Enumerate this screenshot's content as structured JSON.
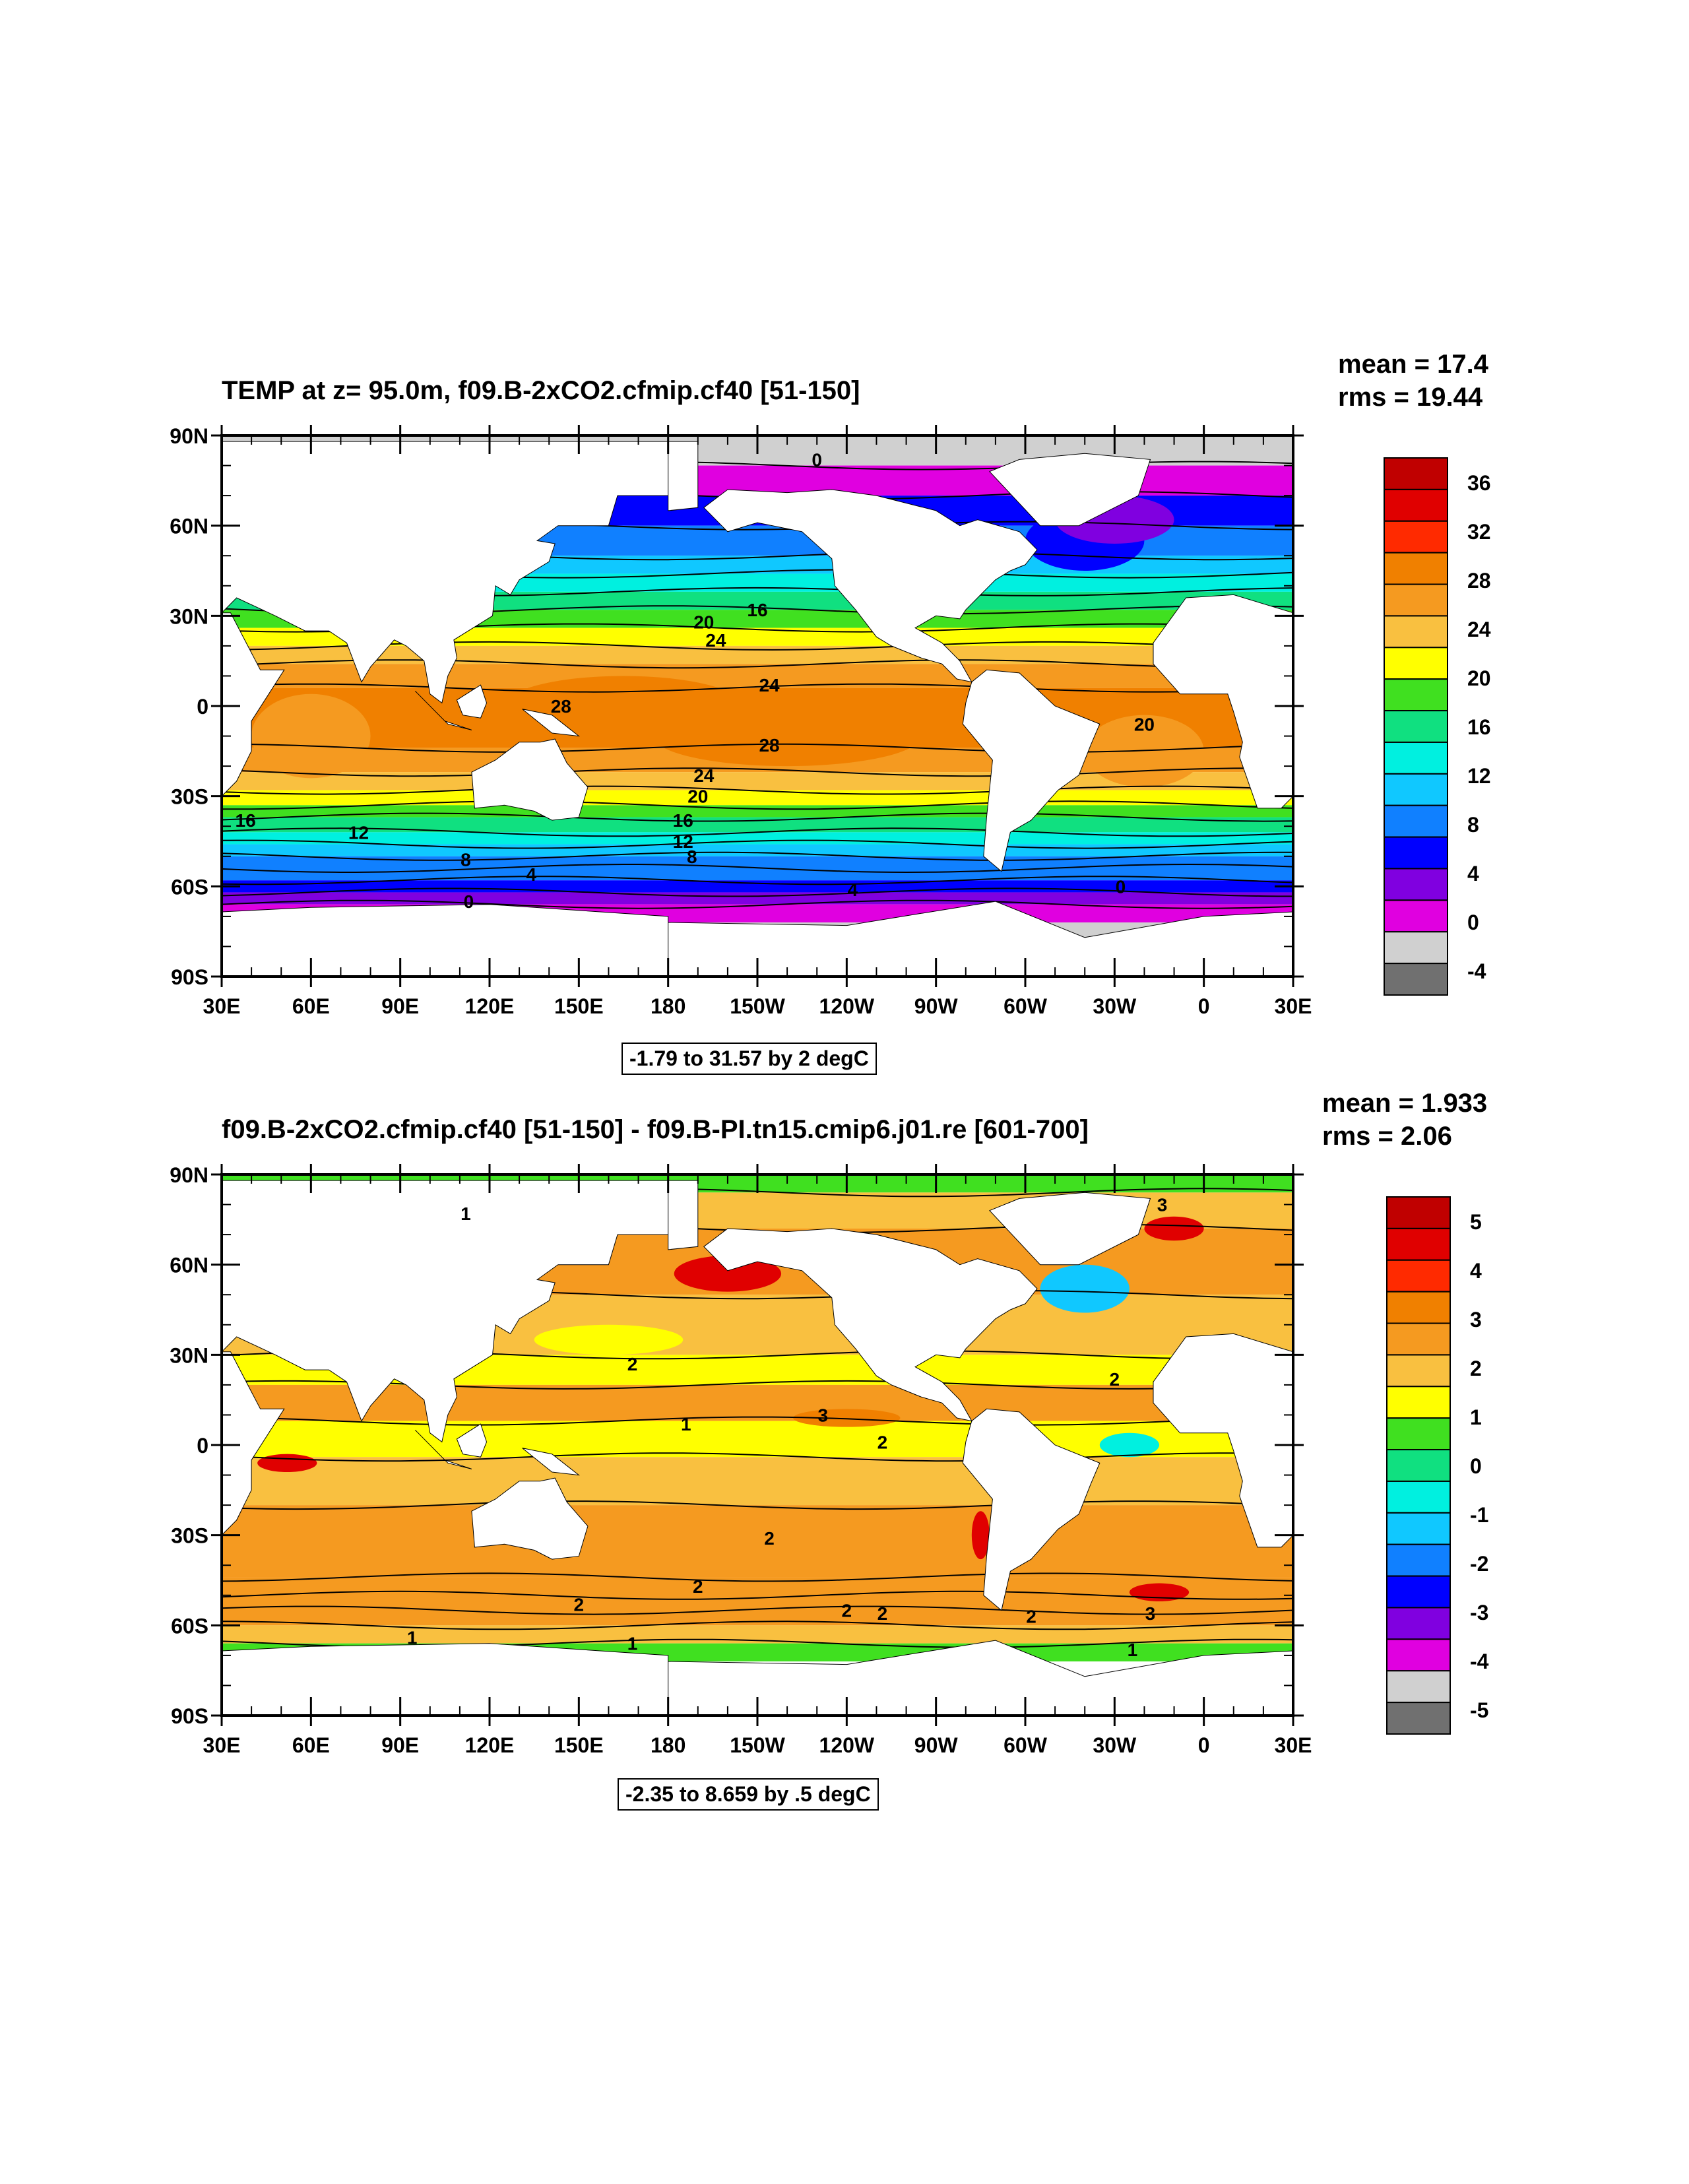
{
  "panels": [
    {
      "title": "TEMP at z=  95.0m, f09.B-2xCO2.cfmip.cf40 [51-150]",
      "mean_label": "mean = 17.4",
      "rms_label": "rms = 19.44",
      "range_label": "-1.79 to 31.57 by 2 degC",
      "colorbar": {
        "labels": [
          "36",
          "32",
          "28",
          "24",
          "20",
          "16",
          "12",
          "8",
          "4",
          "0",
          "-4"
        ],
        "colors": [
          "#c00000",
          "#e00000",
          "#ff2a00",
          "#f08000",
          "#f59a20",
          "#f9c040",
          "#ffff00",
          "#40e020",
          "#10e080",
          "#00f0e0",
          "#10c8ff",
          "#1080ff",
          "#0000ff",
          "#8000e0",
          "#e000e0",
          "#d0d0d0",
          "#707070"
        ]
      },
      "contour_labels": [
        {
          "lon": -130,
          "lat": 82,
          "text": "0"
        },
        {
          "lon": -168,
          "lat": 28,
          "text": "20"
        },
        {
          "lon": -150,
          "lat": 32,
          "text": "16"
        },
        {
          "lon": -164,
          "lat": 22,
          "text": "24"
        },
        {
          "lon": -146,
          "lat": 7,
          "text": "24"
        },
        {
          "lon": 144,
          "lat": 0,
          "text": "28"
        },
        {
          "lon": -146,
          "lat": -13,
          "text": "28"
        },
        {
          "lon": -168,
          "lat": -23,
          "text": "24"
        },
        {
          "lon": -170,
          "lat": -30,
          "text": "20"
        },
        {
          "lon": -20,
          "lat": -6,
          "text": "20"
        },
        {
          "lon": 38,
          "lat": -38,
          "text": "16"
        },
        {
          "lon": -175,
          "lat": -38,
          "text": "16"
        },
        {
          "lon": 76,
          "lat": -42,
          "text": "12"
        },
        {
          "lon": -175,
          "lat": -45,
          "text": "12"
        },
        {
          "lon": 112,
          "lat": -51,
          "text": "8"
        },
        {
          "lon": -172,
          "lat": -50,
          "text": "8"
        },
        {
          "lon": 134,
          "lat": -56,
          "text": "4"
        },
        {
          "lon": -118,
          "lat": -61,
          "text": "4"
        },
        {
          "lon": 113,
          "lat": -65,
          "text": "0"
        },
        {
          "lon": -28,
          "lat": -60,
          "text": "0"
        }
      ]
    },
    {
      "title": "f09.B-2xCO2.cfmip.cf40 [51-150] - f09.B-PI.tn15.cmip6.j01.re [601-700]",
      "mean_label": "mean = 1.933",
      "rms_label": "rms = 2.06",
      "range_label": "-2.35 to 8.659 by .5 degC",
      "colorbar": {
        "labels": [
          "5",
          "4",
          "3",
          "2",
          "1",
          "0",
          "-1",
          "-2",
          "-3",
          "-4",
          "-5"
        ],
        "colors": [
          "#c00000",
          "#e00000",
          "#ff2a00",
          "#f08000",
          "#f59a20",
          "#f9c040",
          "#ffff00",
          "#40e020",
          "#10e080",
          "#00f0e0",
          "#10c8ff",
          "#1080ff",
          "#0000ff",
          "#8000e0",
          "#e000e0",
          "#d0d0d0",
          "#707070"
        ]
      },
      "contour_labels": [
        {
          "lon": 112,
          "lat": 77,
          "text": "1"
        },
        {
          "lon": -14,
          "lat": 80,
          "text": "3"
        },
        {
          "lon": 168,
          "lat": 27,
          "text": "2"
        },
        {
          "lon": -30,
          "lat": 22,
          "text": "2"
        },
        {
          "lon": -174,
          "lat": 7,
          "text": "1"
        },
        {
          "lon": -128,
          "lat": 10,
          "text": "3"
        },
        {
          "lon": -108,
          "lat": 1,
          "text": "2"
        },
        {
          "lon": -146,
          "lat": -31,
          "text": "2"
        },
        {
          "lon": -170,
          "lat": -47,
          "text": "2"
        },
        {
          "lon": 150,
          "lat": -53,
          "text": "2"
        },
        {
          "lon": -120,
          "lat": -55,
          "text": "2"
        },
        {
          "lon": -108,
          "lat": -56,
          "text": "2"
        },
        {
          "lon": -58,
          "lat": -57,
          "text": "2"
        },
        {
          "lon": -18,
          "lat": -56,
          "text": "3"
        },
        {
          "lon": 94,
          "lat": -64,
          "text": "1"
        },
        {
          "lon": 168,
          "lat": -66,
          "text": "1"
        },
        {
          "lon": -24,
          "lat": -68,
          "text": "1"
        }
      ]
    }
  ],
  "axes": {
    "lat_ticks": [
      "90N",
      "60N",
      "30N",
      "0",
      "30S",
      "60S",
      "90S"
    ],
    "lon_ticks": [
      "30E",
      "60E",
      "90E",
      "120E",
      "150E",
      "180",
      "150W",
      "120W",
      "90W",
      "60W",
      "30W",
      "0",
      "30E"
    ]
  }
}
